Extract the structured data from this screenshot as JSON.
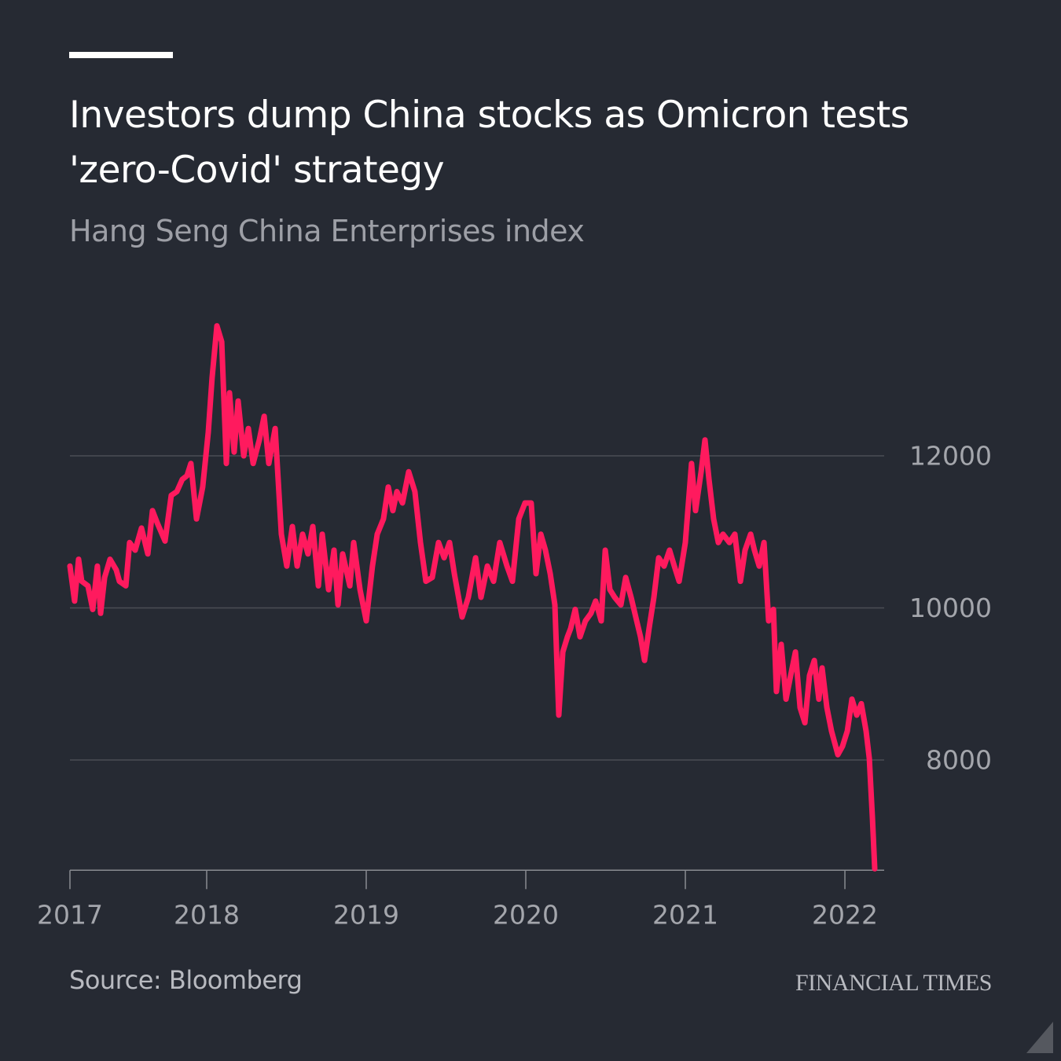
{
  "chart_data": {
    "type": "line",
    "title": "Investors dump China stocks as Omicron tests 'zero-Covid' strategy",
    "subtitle": "Hang Seng China Enterprises index",
    "source": "Source: Bloomberg",
    "brand": "FINANCIAL TIMES",
    "color": "#ff1a5e",
    "grid": true,
    "xlim": [
      2017.143,
      2022.187
    ],
    "xticks": [
      {
        "value": 2017.143,
        "label": "2017"
      },
      2018,
      2019,
      2020,
      2021,
      2022
    ],
    "ylim": [
      6550,
      14000
    ],
    "yticks": [
      8000,
      10000,
      12000
    ],
    "x": [
      2017.143,
      2017.172,
      2017.197,
      2017.217,
      2017.256,
      2017.286,
      2017.315,
      2017.335,
      2017.36,
      2017.394,
      2017.433,
      2017.453,
      2017.493,
      2017.517,
      2017.552,
      2017.591,
      2017.631,
      2017.66,
      2017.69,
      2017.739,
      2017.778,
      2017.813,
      2017.847,
      2017.877,
      2017.901,
      2017.936,
      2017.975,
      2018.01,
      2018.034,
      2018.064,
      2018.094,
      2018.123,
      2018.143,
      2018.172,
      2018.197,
      2018.232,
      2018.261,
      2018.291,
      2018.33,
      2018.36,
      2018.389,
      2018.429,
      2018.468,
      2018.502,
      2018.537,
      2018.567,
      2018.601,
      2018.635,
      2018.665,
      2018.7,
      2018.724,
      2018.764,
      2018.798,
      2018.823,
      2018.852,
      2018.897,
      2018.921,
      2018.961,
      2019.0,
      2019.039,
      2019.069,
      2019.108,
      2019.138,
      2019.167,
      2019.192,
      2019.227,
      2019.266,
      2019.305,
      2019.34,
      2019.374,
      2019.414,
      2019.453,
      2019.488,
      2019.522,
      2019.552,
      2019.601,
      2019.64,
      2019.685,
      2019.719,
      2019.759,
      2019.798,
      2019.837,
      2019.882,
      2019.916,
      2019.956,
      2019.995,
      2020.034,
      2020.064,
      2020.094,
      2020.123,
      2020.153,
      2020.182,
      2020.207,
      2020.232,
      2020.261,
      2020.281,
      2020.31,
      2020.34,
      2020.374,
      2020.409,
      2020.438,
      2020.473,
      2020.498,
      2020.527,
      2020.557,
      2020.596,
      2020.626,
      2020.66,
      2020.695,
      2020.719,
      2020.744,
      2020.773,
      2020.803,
      2020.833,
      2020.867,
      2020.901,
      2020.931,
      2020.961,
      2021.0,
      2021.039,
      2021.064,
      2021.099,
      2021.123,
      2021.148,
      2021.177,
      2021.207,
      2021.236,
      2021.276,
      2021.31,
      2021.345,
      2021.374,
      2021.409,
      2021.433,
      2021.463,
      2021.493,
      2021.522,
      2021.552,
      2021.571,
      2021.601,
      2021.631,
      2021.66,
      2021.69,
      2021.719,
      2021.749,
      2021.778,
      2021.808,
      2021.837,
      2021.857,
      2021.887,
      2021.916,
      2021.956,
      2021.985,
      2022.015,
      2022.044,
      2022.074,
      2022.103,
      2022.133,
      2022.153,
      2022.172,
      2022.187
    ],
    "values": [
      10550,
      10090,
      10640,
      10350,
      10290,
      9980,
      10550,
      9930,
      10400,
      10640,
      10500,
      10350,
      10290,
      10860,
      10760,
      11050,
      10710,
      11280,
      11120,
      10880,
      11480,
      11530,
      11690,
      11740,
      11900,
      11170,
      11590,
      12310,
      13030,
      13710,
      13500,
      11900,
      12830,
      12050,
      12720,
      12000,
      12360,
      11900,
      12210,
      12520,
      11900,
      12360,
      10970,
      10550,
      11070,
      10550,
      10970,
      10710,
      11070,
      10290,
      10970,
      10240,
      10760,
      10040,
      10710,
      10290,
      10860,
      10240,
      9830,
      10550,
      10970,
      11170,
      11590,
      11280,
      11530,
      11380,
      11790,
      11530,
      10860,
      10350,
      10400,
      10860,
      10660,
      10860,
      10450,
      9880,
      10140,
      10660,
      10140,
      10550,
      10350,
      10860,
      10550,
      10350,
      11170,
      11380,
      11380,
      10450,
      10970,
      10760,
      10450,
      10040,
      8590,
      9420,
      9620,
      9730,
      9980,
      9620,
      9830,
      9930,
      10090,
      9830,
      10760,
      10240,
      10140,
      10040,
      10400,
      10140,
      9830,
      9620,
      9310,
      9730,
      10140,
      10660,
      10550,
      10760,
      10550,
      10350,
      10860,
      11900,
      11280,
      11790,
      12210,
      11690,
      11170,
      10860,
      10970,
      10860,
      10970,
      10350,
      10760,
      10970,
      10760,
      10550,
      10860,
      9830,
      9980,
      8900,
      9520,
      8800,
      9110,
      9420,
      8690,
      8490,
      9110,
      9310,
      8800,
      9210,
      8690,
      8380,
      8070,
      8180,
      8380,
      8800,
      8590,
      8740,
      8380,
      8020,
      7250,
      6570
    ]
  }
}
